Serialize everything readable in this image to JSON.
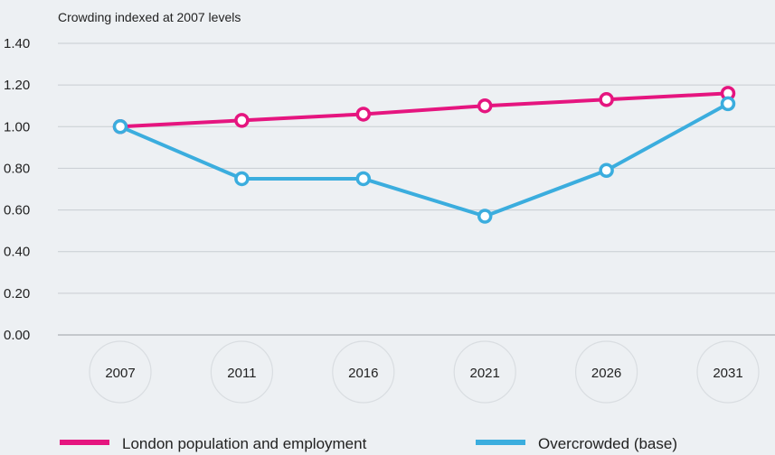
{
  "chart_data": {
    "type": "line",
    "ylabel": "Crowding indexed at 2007 levels",
    "categories": [
      "2007",
      "2011",
      "2016",
      "2021",
      "2026",
      "2031"
    ],
    "ylim": [
      0,
      1.4
    ],
    "yticks": [
      "0.00",
      "0.20",
      "0.40",
      "0.60",
      "0.80",
      "1.00",
      "1.20",
      "1.40"
    ],
    "grid": true,
    "legend_position": "bottom",
    "series": [
      {
        "name": "London population and employment",
        "color": "#e5157f",
        "values": [
          1.0,
          1.03,
          1.06,
          1.1,
          1.13,
          1.16
        ]
      },
      {
        "name": "Overcrowded (base)",
        "color": "#3badde",
        "values": [
          1.0,
          0.75,
          0.75,
          0.57,
          0.79,
          1.11
        ]
      }
    ]
  }
}
